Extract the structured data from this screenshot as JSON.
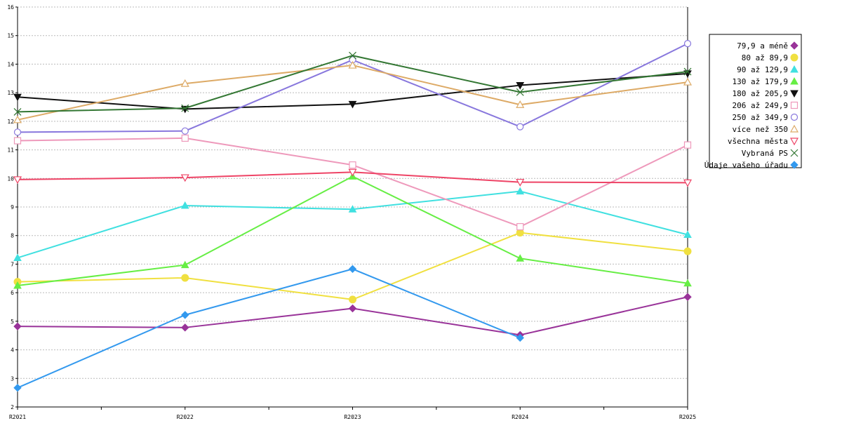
{
  "chart_data": {
    "type": "line",
    "title": "",
    "xlabel": "",
    "ylabel": "",
    "ylim": [
      2,
      16
    ],
    "y_ticks": [
      2,
      3,
      4,
      5,
      6,
      7,
      8,
      9,
      10,
      11,
      12,
      13,
      14,
      15,
      16
    ],
    "grid": true,
    "legend_position": "right",
    "categories": [
      "R2021",
      "R2022",
      "R2023",
      "R2024",
      "R2025"
    ],
    "series": [
      {
        "name": "79,9 a méně",
        "color": "#993399",
        "marker": "diamond",
        "values": [
          4.82,
          4.78,
          5.45,
          4.52,
          5.85
        ]
      },
      {
        "name": "80 až 89,9",
        "color": "#f0e040",
        "marker": "circle-filled",
        "values": [
          6.38,
          6.52,
          5.76,
          8.1,
          7.45
        ]
      },
      {
        "name": "90 až 129,9",
        "color": "#40e0e0",
        "marker": "triangle-filled",
        "values": [
          7.22,
          9.05,
          8.92,
          9.55,
          8.03
        ]
      },
      {
        "name": "130 až 179,9",
        "color": "#66ee44",
        "marker": "triangle-filled",
        "values": [
          6.25,
          6.97,
          10.07,
          7.2,
          6.33
        ]
      },
      {
        "name": "180 až 205,9",
        "color": "#111111",
        "marker": "triangle-down-filled",
        "values": [
          12.85,
          12.43,
          12.6,
          13.26,
          13.67
        ]
      },
      {
        "name": "206 až 249,9",
        "color": "#ee99bb",
        "marker": "square-open",
        "values": [
          11.32,
          11.41,
          10.47,
          8.31,
          11.17
        ]
      },
      {
        "name": "250 až 349,9",
        "color": "#8877dd",
        "marker": "circle-open",
        "values": [
          11.62,
          11.66,
          14.15,
          11.81,
          14.72
        ]
      },
      {
        "name": "více než 350",
        "color": "#ddaa66",
        "marker": "triangle-open",
        "values": [
          12.05,
          13.32,
          13.96,
          12.58,
          13.37
        ]
      },
      {
        "name": "všechna města",
        "color": "#ee4466",
        "marker": "triangle-down-open",
        "values": [
          9.96,
          10.03,
          10.22,
          9.87,
          9.85
        ]
      },
      {
        "name": "Vybraná PS",
        "color": "#337733",
        "marker": "x",
        "values": [
          12.33,
          12.46,
          14.3,
          13.02,
          13.74
        ]
      },
      {
        "name": "Údaje vašeho úřadu",
        "color": "#3399ee",
        "marker": "diamond",
        "values": [
          2.67,
          5.22,
          6.83,
          4.42,
          null
        ]
      }
    ]
  }
}
